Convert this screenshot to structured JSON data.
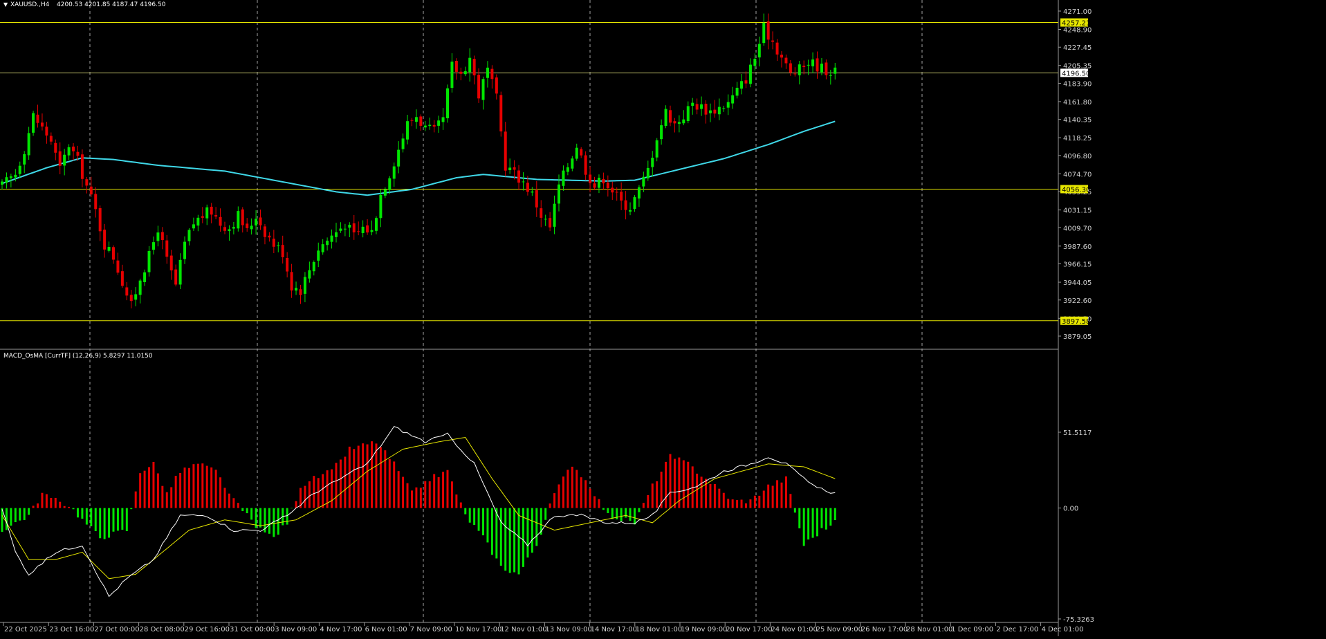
{
  "title_bar": {
    "symbol": "XAUUSD.,H4",
    "ohlc": "4200.53 4201.85 4187.47 4196.50",
    "arrow_glyph": "▼"
  },
  "colors": {
    "background": "#000000",
    "bull_candle": "#00e600",
    "bear_candle": "#e60000",
    "moving_average": "#3fd8e8",
    "hline": "#e6e600",
    "grid": "#cfcfcf",
    "axis_text": "#cfcfcf",
    "macd_line": "#ffffff",
    "signal_line": "#e6e600"
  },
  "chart_data": [
    {
      "type": "candlestick",
      "series_name": "XAUUSD.,H4",
      "ylim": [
        3879.05,
        4271.0
      ],
      "y_ticks": [
        "4271.00",
        "4248.90",
        "4227.45",
        "4205.35",
        "4183.90",
        "4161.80",
        "4140.35",
        "4118.25",
        "4096.80",
        "4074.70",
        "4053.25",
        "4031.15",
        "4009.70",
        "3987.60",
        "3966.15",
        "3944.05",
        "3922.60",
        "3900.50",
        "3879.05"
      ],
      "x_labels": [
        "22 Oct 2025",
        "23 Oct 16:00",
        "27 Oct 00:00",
        "28 Oct 08:00",
        "29 Oct 16:00",
        "31 Oct 00:00",
        "3 Nov 09:00",
        "4 Nov 17:00",
        "6 Nov 01:00",
        "7 Nov 09:00",
        "10 Nov 17:00",
        "12 Nov 01:00",
        "13 Nov 09:00",
        "14 Nov 17:00",
        "18 Nov 01:00",
        "19 Nov 09:00",
        "20 Nov 17:00",
        "24 Nov 01:00",
        "25 Nov 09:00",
        "26 Nov 17:00",
        "28 Nov 01:00",
        "1 Dec 09:00",
        "2 Dec 17:00",
        "4 Dec 01:00"
      ],
      "horizontal_lines": [
        {
          "value": 4257.21,
          "label": "4257.21"
        },
        {
          "value": 4056.3,
          "label": "4056.30"
        },
        {
          "value": 3897.58,
          "label": "3897.58"
        }
      ],
      "current_price": {
        "value": 4196.5,
        "label": "4196.50"
      },
      "anchor_closes": [
        [
          0,
          4060
        ],
        [
          3,
          4075
        ],
        [
          5,
          4105
        ],
        [
          7,
          4145
        ],
        [
          9,
          4130
        ],
        [
          11,
          4115
        ],
        [
          13,
          4080
        ],
        [
          15,
          4110
        ],
        [
          17,
          4090
        ],
        [
          19,
          4060
        ],
        [
          21,
          4030
        ],
        [
          23,
          3990
        ],
        [
          25,
          3975
        ],
        [
          27,
          3945
        ],
        [
          29,
          3915
        ],
        [
          31,
          3950
        ],
        [
          33,
          3975
        ],
        [
          35,
          4010
        ],
        [
          37,
          3970
        ],
        [
          39,
          3940
        ],
        [
          41,
          3990
        ],
        [
          43,
          4015
        ],
        [
          45,
          4025
        ],
        [
          47,
          4030
        ],
        [
          49,
          4015
        ],
        [
          51,
          4010
        ],
        [
          53,
          4025
        ],
        [
          55,
          4005
        ],
        [
          57,
          4025
        ],
        [
          59,
          4005
        ],
        [
          61,
          3990
        ],
        [
          63,
          3980
        ],
        [
          65,
          3940
        ],
        [
          67,
          3935
        ],
        [
          69,
          3960
        ],
        [
          71,
          3985
        ],
        [
          73,
          3995
        ],
        [
          75,
          4005
        ],
        [
          77,
          4015
        ],
        [
          79,
          4000
        ],
        [
          81,
          4010
        ],
        [
          83,
          4005
        ],
        [
          85,
          4050
        ],
        [
          87,
          4075
        ],
        [
          89,
          4105
        ],
        [
          91,
          4135
        ],
        [
          93,
          4145
        ],
        [
          95,
          4130
        ],
        [
          97,
          4125
        ],
        [
          99,
          4140
        ],
        [
          101,
          4205
        ],
        [
          103,
          4195
        ],
        [
          105,
          4215
        ],
        [
          107,
          4170
        ],
        [
          109,
          4200
        ],
        [
          111,
          4165
        ],
        [
          113,
          4085
        ],
        [
          115,
          4075
        ],
        [
          117,
          4065
        ],
        [
          119,
          4050
        ],
        [
          121,
          4025
        ],
        [
          123,
          4010
        ],
        [
          125,
          4060
        ],
        [
          127,
          4085
        ],
        [
          129,
          4110
        ],
        [
          131,
          4080
        ],
        [
          133,
          4060
        ],
        [
          135,
          4070
        ],
        [
          137,
          4055
        ],
        [
          139,
          4040
        ],
        [
          141,
          4035
        ],
        [
          143,
          4055
        ],
        [
          145,
          4080
        ],
        [
          147,
          4120
        ],
        [
          149,
          4150
        ],
        [
          151,
          4135
        ],
        [
          153,
          4145
        ],
        [
          155,
          4160
        ],
        [
          157,
          4155
        ],
        [
          159,
          4150
        ],
        [
          161,
          4155
        ],
        [
          163,
          4160
        ],
        [
          165,
          4175
        ],
        [
          167,
          4190
        ],
        [
          169,
          4215
        ],
        [
          171,
          4250
        ],
        [
          173,
          4235
        ],
        [
          175,
          4215
        ],
        [
          177,
          4195
        ],
        [
          179,
          4200
        ],
        [
          181,
          4210
        ],
        [
          183,
          4205
        ],
        [
          185,
          4200
        ],
        [
          187,
          4197
        ]
      ],
      "ma_curve": [
        [
          0,
          4063
        ],
        [
          10,
          4082
        ],
        [
          18,
          4094
        ],
        [
          25,
          4092
        ],
        [
          35,
          4085
        ],
        [
          50,
          4078
        ],
        [
          62,
          4066
        ],
        [
          75,
          4053
        ],
        [
          82,
          4049
        ],
        [
          92,
          4056
        ],
        [
          102,
          4070
        ],
        [
          108,
          4074
        ],
        [
          120,
          4068
        ],
        [
          135,
          4066
        ],
        [
          142,
          4067
        ],
        [
          152,
          4080
        ],
        [
          162,
          4093
        ],
        [
          172,
          4110
        ],
        [
          180,
          4126
        ],
        [
          187,
          4138
        ]
      ]
    },
    {
      "type": "macd_osma",
      "label": "MACD_OsMA [CurrTF] (12,26,9) 5.8297 11.0150",
      "ylim": [
        -75.3263,
        51.5117
      ],
      "y_ticks": [
        "51.5117",
        "0.00",
        "-75.3263"
      ],
      "histogram_anchors": [
        [
          0,
          -15
        ],
        [
          6,
          -5
        ],
        [
          9,
          10
        ],
        [
          12,
          5
        ],
        [
          15,
          2
        ],
        [
          18,
          -8
        ],
        [
          22,
          -20
        ],
        [
          28,
          -15
        ],
        [
          31,
          25
        ],
        [
          34,
          30
        ],
        [
          37,
          10
        ],
        [
          40,
          25
        ],
        [
          44,
          30
        ],
        [
          48,
          25
        ],
        [
          52,
          5
        ],
        [
          55,
          -5
        ],
        [
          58,
          -15
        ],
        [
          61,
          -20
        ],
        [
          64,
          -10
        ],
        [
          67,
          15
        ],
        [
          70,
          20
        ],
        [
          74,
          25
        ],
        [
          78,
          40
        ],
        [
          84,
          45
        ],
        [
          88,
          30
        ],
        [
          92,
          10
        ],
        [
          96,
          20
        ],
        [
          100,
          25
        ],
        [
          104,
          -5
        ],
        [
          108,
          -20
        ],
        [
          112,
          -40
        ],
        [
          116,
          -45
        ],
        [
          120,
          -25
        ],
        [
          124,
          10
        ],
        [
          128,
          30
        ],
        [
          132,
          15
        ],
        [
          136,
          -5
        ],
        [
          142,
          -10
        ],
        [
          146,
          15
        ],
        [
          150,
          35
        ],
        [
          154,
          30
        ],
        [
          160,
          15
        ],
        [
          164,
          5
        ],
        [
          168,
          5
        ],
        [
          172,
          15
        ],
        [
          176,
          20
        ],
        [
          180,
          -25
        ],
        [
          184,
          -15
        ],
        [
          187,
          -10
        ]
      ],
      "macd_anchors": [
        [
          0,
          0
        ],
        [
          3,
          -30
        ],
        [
          6,
          -45
        ],
        [
          12,
          -30
        ],
        [
          18,
          -25
        ],
        [
          24,
          -60
        ],
        [
          28,
          -48
        ],
        [
          34,
          -35
        ],
        [
          40,
          -5
        ],
        [
          46,
          -5
        ],
        [
          52,
          -15
        ],
        [
          58,
          -15
        ],
        [
          64,
          -5
        ],
        [
          70,
          10
        ],
        [
          76,
          20
        ],
        [
          82,
          30
        ],
        [
          88,
          55
        ],
        [
          95,
          45
        ],
        [
          100,
          50
        ],
        [
          106,
          30
        ],
        [
          112,
          -10
        ],
        [
          118,
          -25
        ],
        [
          124,
          -5
        ],
        [
          130,
          -5
        ],
        [
          136,
          -10
        ],
        [
          142,
          -10
        ],
        [
          146,
          -5
        ],
        [
          150,
          10
        ],
        [
          156,
          15
        ],
        [
          162,
          25
        ],
        [
          168,
          30
        ],
        [
          172,
          35
        ],
        [
          176,
          30
        ],
        [
          182,
          15
        ],
        [
          187,
          10
        ]
      ],
      "signal_anchors": [
        [
          0,
          -5
        ],
        [
          6,
          -35
        ],
        [
          12,
          -35
        ],
        [
          18,
          -30
        ],
        [
          24,
          -48
        ],
        [
          30,
          -45
        ],
        [
          36,
          -30
        ],
        [
          42,
          -15
        ],
        [
          50,
          -8
        ],
        [
          58,
          -12
        ],
        [
          66,
          -8
        ],
        [
          74,
          5
        ],
        [
          82,
          25
        ],
        [
          90,
          40
        ],
        [
          98,
          45
        ],
        [
          104,
          48
        ],
        [
          110,
          20
        ],
        [
          116,
          -5
        ],
        [
          124,
          -15
        ],
        [
          132,
          -10
        ],
        [
          140,
          -5
        ],
        [
          146,
          -10
        ],
        [
          152,
          5
        ],
        [
          160,
          20
        ],
        [
          166,
          25
        ],
        [
          172,
          30
        ],
        [
          180,
          28
        ],
        [
          187,
          20
        ]
      ]
    }
  ]
}
